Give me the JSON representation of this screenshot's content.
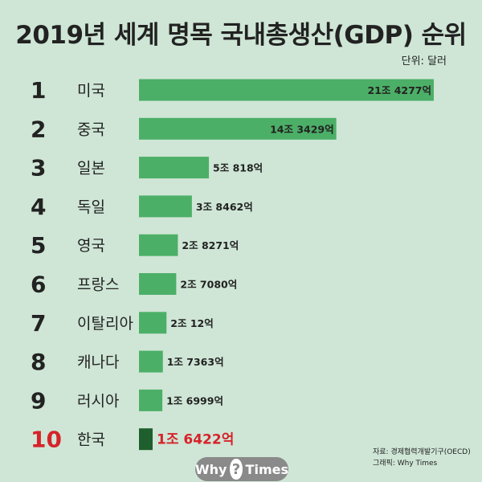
{
  "title": "2019년 세계 명목 국내총생산(GDP) 순위",
  "unit": "단위: 달러",
  "source_line": "자료: 경제협력개발기구(OECD)",
  "graphic_line": "그래픽: Why Times",
  "logo": {
    "left": "Why",
    "mark": "?",
    "right": "Times"
  },
  "colors": {
    "bar": "#4caf67",
    "highlight_bar": "#1f5e2d",
    "highlight_text": "#d6232a"
  },
  "chart_data": {
    "type": "bar",
    "orientation": "horizontal",
    "title": "2019년 세계 명목 국내총생산(GDP) 순위",
    "ranks": [
      "1",
      "2",
      "3",
      "4",
      "5",
      "6",
      "7",
      "8",
      "9",
      "10"
    ],
    "categories": [
      "미국",
      "중국",
      "일본",
      "독일",
      "영국",
      "프랑스",
      "이탈리아",
      "캐나다",
      "러시아",
      "한국"
    ],
    "values": [
      214277,
      143429,
      50818,
      38462,
      28271,
      27080,
      20012,
      17363,
      16999,
      16422
    ],
    "value_labels": [
      "21조 4277억",
      "14조 3429억",
      "5조 818억",
      "3조 8462억",
      "2조 8271억",
      "2조 7080억",
      "2조 12억",
      "1조 7363억",
      "1조 6999억",
      "1조 6422억"
    ],
    "value_unit": "억 달러",
    "highlight_index": 9,
    "xlim": [
      0,
      214277
    ],
    "grid": false
  }
}
